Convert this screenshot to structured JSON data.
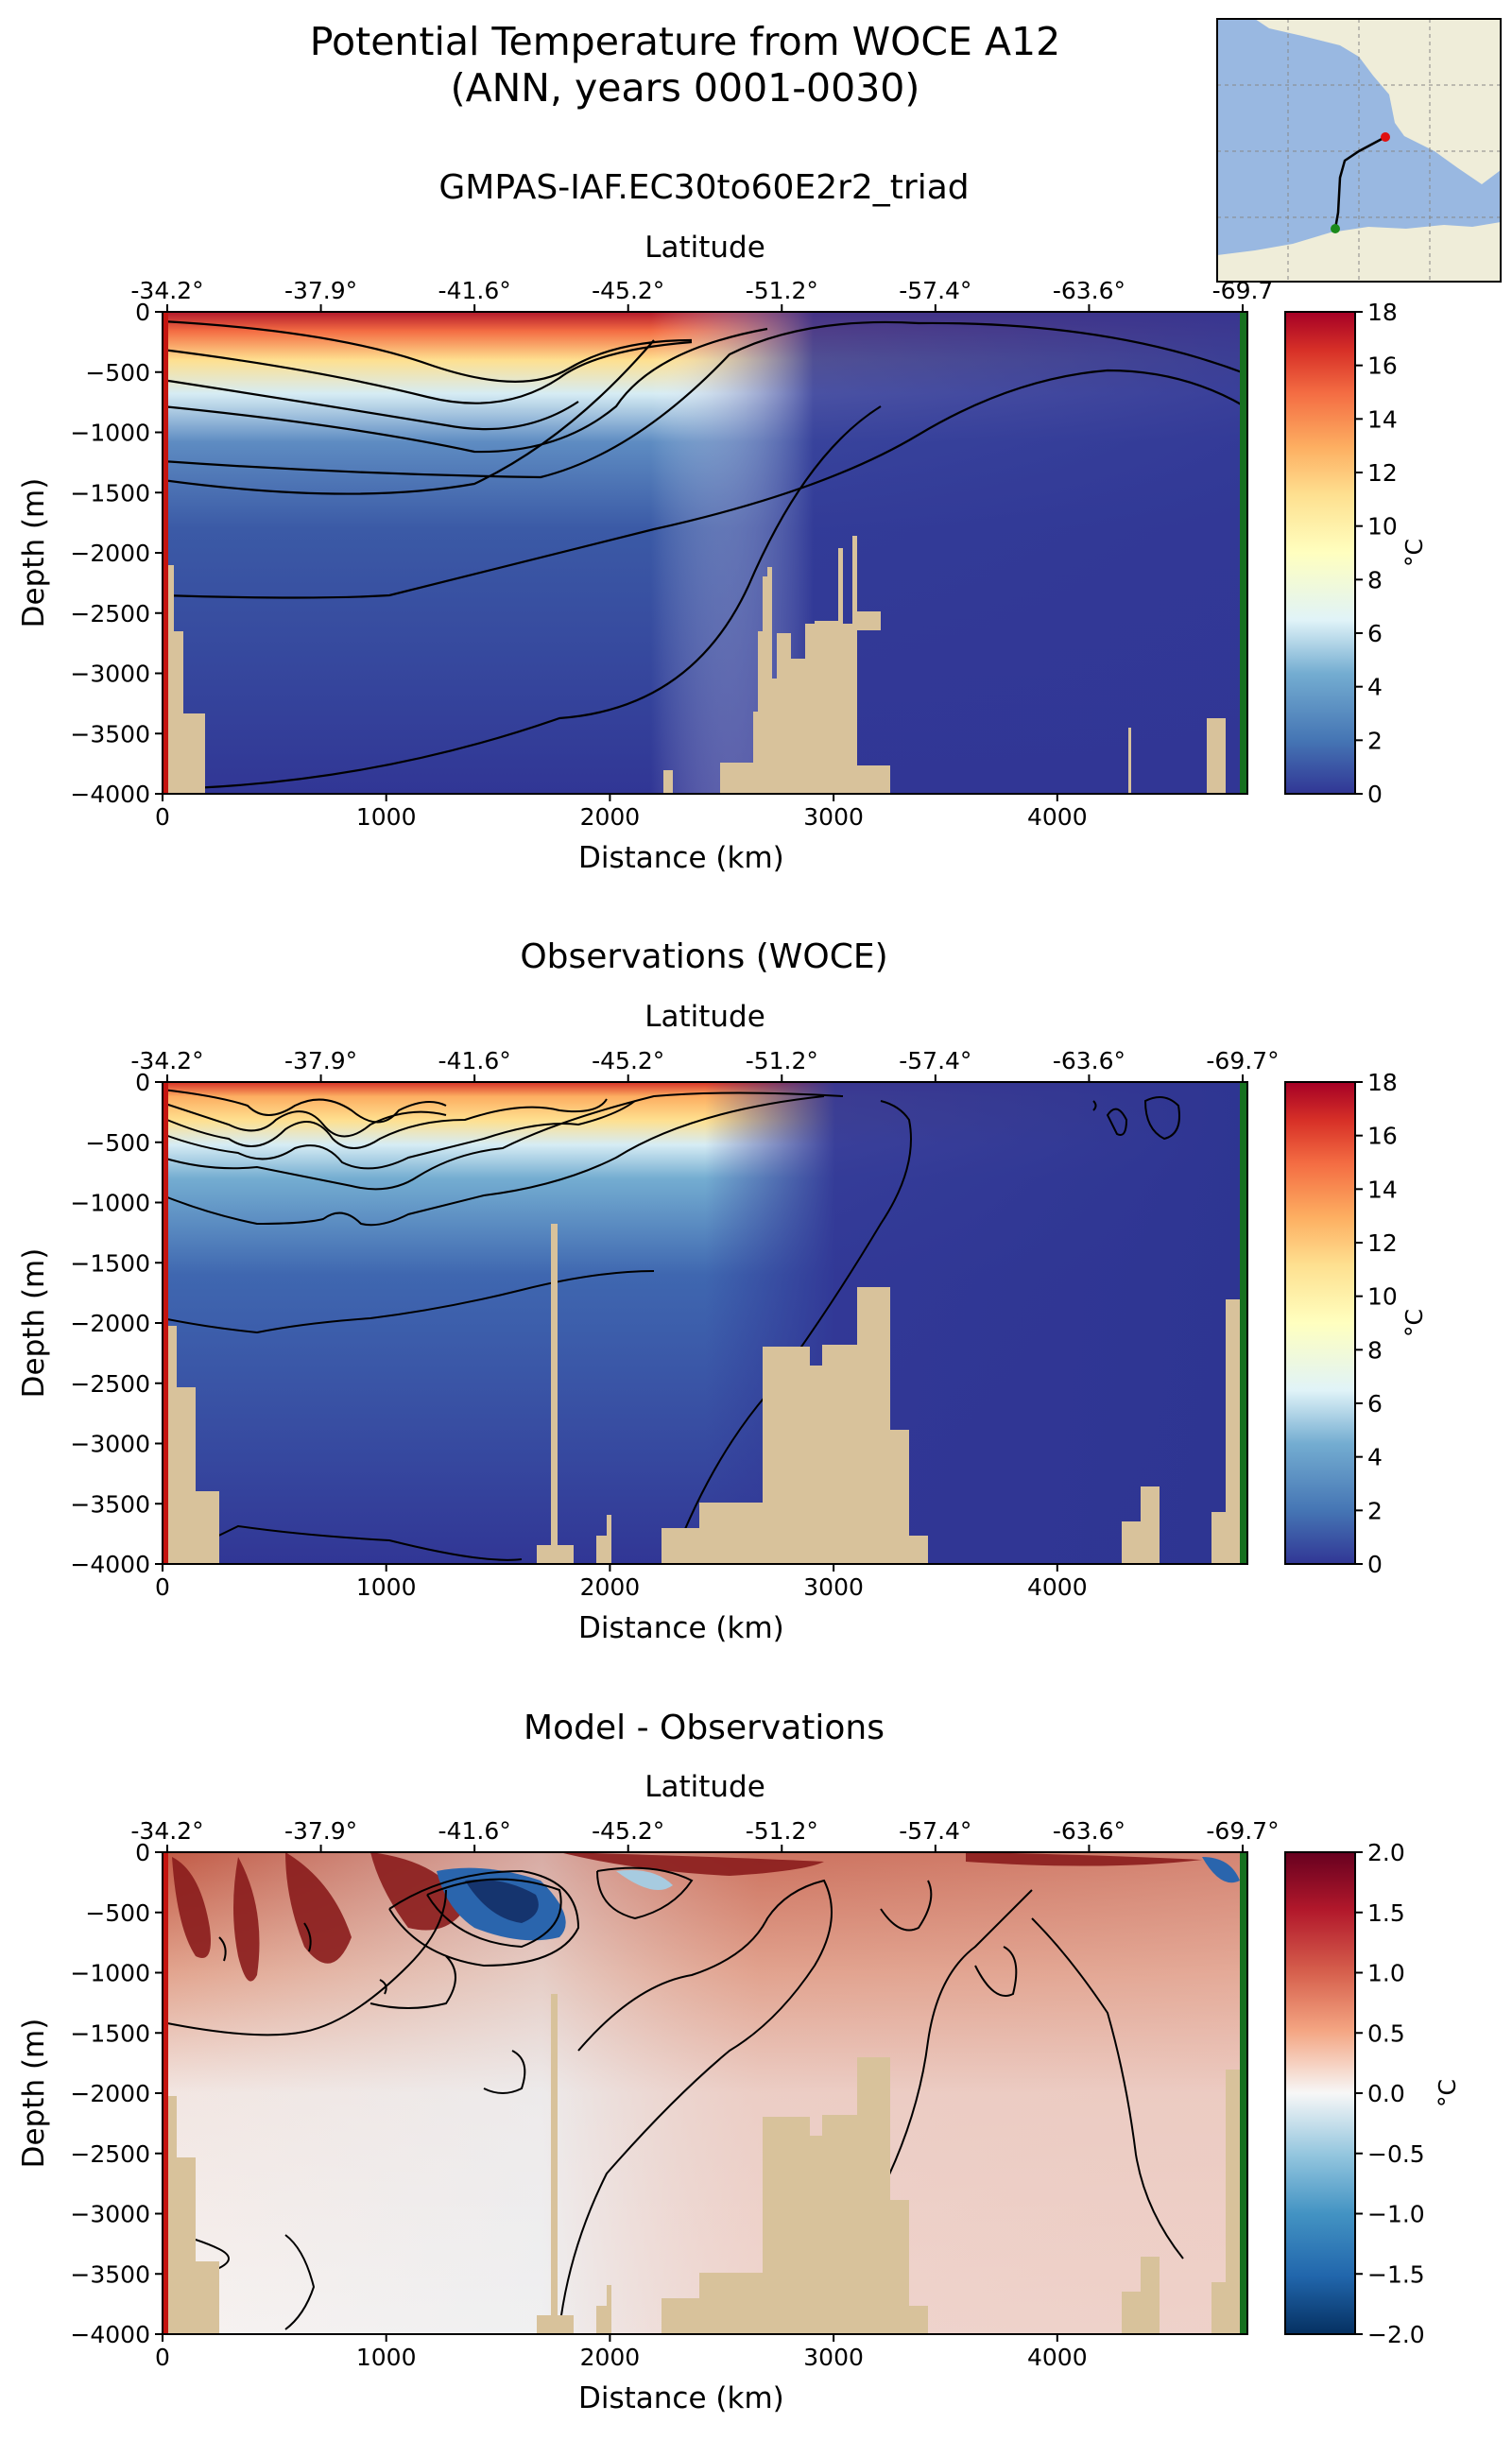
{
  "figure": {
    "title_line1": "Potential Temperature from WOCE A12",
    "title_line2": "(ANN, years 0001-0030)"
  },
  "inset_map": {
    "ocean_color": "#99b8e1",
    "land_color": "#efedd9",
    "section_start_marker": "red-dot",
    "section_end_marker": "green-dot"
  },
  "colors": {
    "bathymetry": "#d8c29b",
    "section_start_line": "#c4140f",
    "section_end_line": "#16701f"
  },
  "chart_data": [
    {
      "type": "heatmap",
      "title": "GMPAS-IAF.EC30to60E2r2_triad",
      "xlabel": "Distance (km)",
      "ylabel": "Depth (m)",
      "top_xlabel": "Latitude",
      "xlim": [
        0,
        4850
      ],
      "ylim": [
        -4000,
        0
      ],
      "xticks": [
        0,
        1000,
        2000,
        3000,
        4000
      ],
      "yticks": [
        0,
        -500,
        -1000,
        -1500,
        -2000,
        -2500,
        -3000,
        -3500,
        -4000
      ],
      "top_xticks": [
        "-34.2°",
        "-37.9°",
        "-41.6°",
        "-45.2°",
        "-51.2°",
        "-57.4°",
        "-63.6°",
        "-69.7"
      ],
      "colormap": "RdYlBu_r",
      "colorbar": {
        "label": "°C",
        "range": [
          0,
          18
        ],
        "ticks": [
          0,
          2,
          4,
          6,
          8,
          10,
          12,
          14,
          16,
          18
        ]
      }
    },
    {
      "type": "heatmap",
      "title": "Observations (WOCE)",
      "xlabel": "Distance (km)",
      "ylabel": "Depth (m)",
      "top_xlabel": "Latitude",
      "xlim": [
        0,
        4850
      ],
      "ylim": [
        -4000,
        0
      ],
      "xticks": [
        0,
        1000,
        2000,
        3000,
        4000
      ],
      "yticks": [
        0,
        -500,
        -1000,
        -1500,
        -2000,
        -2500,
        -3000,
        -3500,
        -4000
      ],
      "top_xticks": [
        "-34.2°",
        "-37.9°",
        "-41.6°",
        "-45.2°",
        "-51.2°",
        "-57.4°",
        "-63.6°",
        "-69.7°"
      ],
      "colormap": "RdYlBu_r",
      "colorbar": {
        "label": "°C",
        "range": [
          0,
          18
        ],
        "ticks": [
          0,
          2,
          4,
          6,
          8,
          10,
          12,
          14,
          16,
          18
        ]
      }
    },
    {
      "type": "heatmap",
      "title": "Model - Observations",
      "xlabel": "Distance (km)",
      "ylabel": "Depth (m)",
      "top_xlabel": "Latitude",
      "xlim": [
        0,
        4850
      ],
      "ylim": [
        -4000,
        0
      ],
      "xticks": [
        0,
        1000,
        2000,
        3000,
        4000
      ],
      "yticks": [
        0,
        -500,
        -1000,
        -1500,
        -2000,
        -2500,
        -3000,
        -3500,
        -4000
      ],
      "top_xticks": [
        "-34.2°",
        "-37.9°",
        "-41.6°",
        "-45.2°",
        "-51.2°",
        "-57.4°",
        "-63.6°",
        "-69.7°"
      ],
      "colormap": "RdBu_r",
      "colorbar": {
        "label": "°C",
        "range": [
          -2.0,
          2.0
        ],
        "ticks": [
          -2.0,
          -1.5,
          -1.0,
          -0.5,
          0.0,
          0.5,
          1.0,
          1.5,
          2.0
        ]
      }
    }
  ]
}
